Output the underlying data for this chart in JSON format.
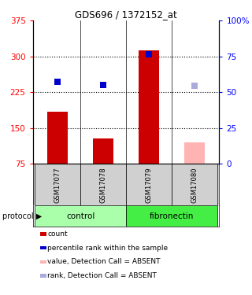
{
  "title": "GDS696 / 1372152_at",
  "samples": [
    "GSM17077",
    "GSM17078",
    "GSM17079",
    "GSM17080"
  ],
  "bar_values": [
    185,
    128,
    313,
    120
  ],
  "bar_colors": [
    "#cc0000",
    "#cc0000",
    "#cc0000",
    "#ffb3b3"
  ],
  "dot_values": [
    247,
    240,
    305,
    238
  ],
  "dot_colors": [
    "#0000cc",
    "#0000cc",
    "#0000cc",
    "#aaaadd"
  ],
  "ylim_left": [
    75,
    375
  ],
  "ylim_right": [
    0,
    100
  ],
  "yticks_left": [
    75,
    150,
    225,
    300,
    375
  ],
  "yticks_right": [
    0,
    25,
    50,
    75,
    100
  ],
  "ytick_labels_right": [
    "0",
    "25",
    "50",
    "75",
    "100%"
  ],
  "hlines": [
    150,
    225,
    300
  ],
  "groups": [
    {
      "label": "control",
      "x_start": -0.5,
      "x_end": 1.5,
      "color": "#aaffaa"
    },
    {
      "label": "fibronectin",
      "x_start": 1.5,
      "x_end": 3.5,
      "color": "#44ee44"
    }
  ],
  "protocol_label": "protocol",
  "legend_items": [
    {
      "color": "#cc0000",
      "label": "count"
    },
    {
      "color": "#0000cc",
      "label": "percentile rank within the sample"
    },
    {
      "color": "#ffb3b3",
      "label": "value, Detection Call = ABSENT"
    },
    {
      "color": "#aaaadd",
      "label": "rank, Detection Call = ABSENT"
    }
  ],
  "bar_bottom": 75,
  "bar_width": 0.45,
  "dot_size": 38,
  "x_positions": [
    0,
    1,
    2,
    3
  ],
  "xlim": [
    -0.55,
    3.55
  ]
}
